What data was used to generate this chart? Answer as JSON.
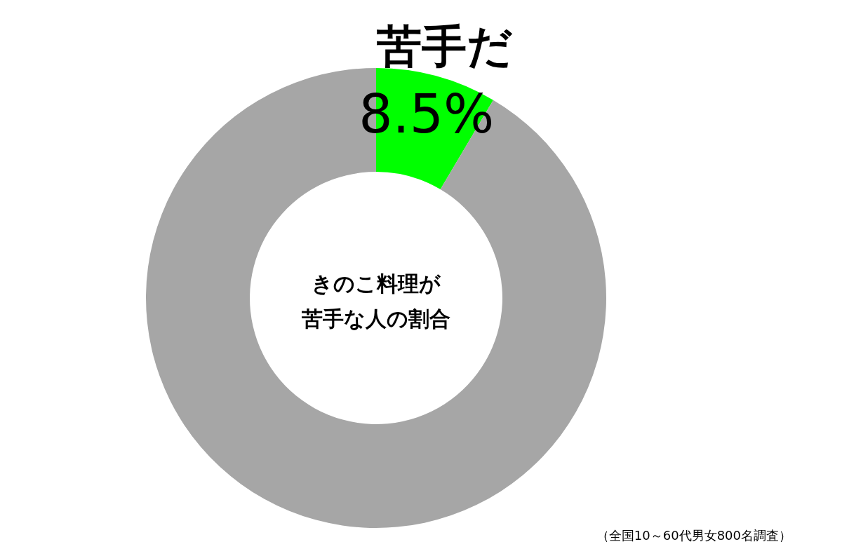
{
  "chart_data": {
    "type": "donut",
    "title": "きのこ料理が苦手な人の割合",
    "categories": [
      "苦手だ",
      null
    ],
    "values": [
      8.5,
      91.5
    ],
    "colors": [
      "#00ff00",
      "#a6a6a6"
    ],
    "value_labels": [
      "8.5%",
      null
    ],
    "annotations": [
      "（全国10～60代男女800名調査）"
    ]
  }
}
